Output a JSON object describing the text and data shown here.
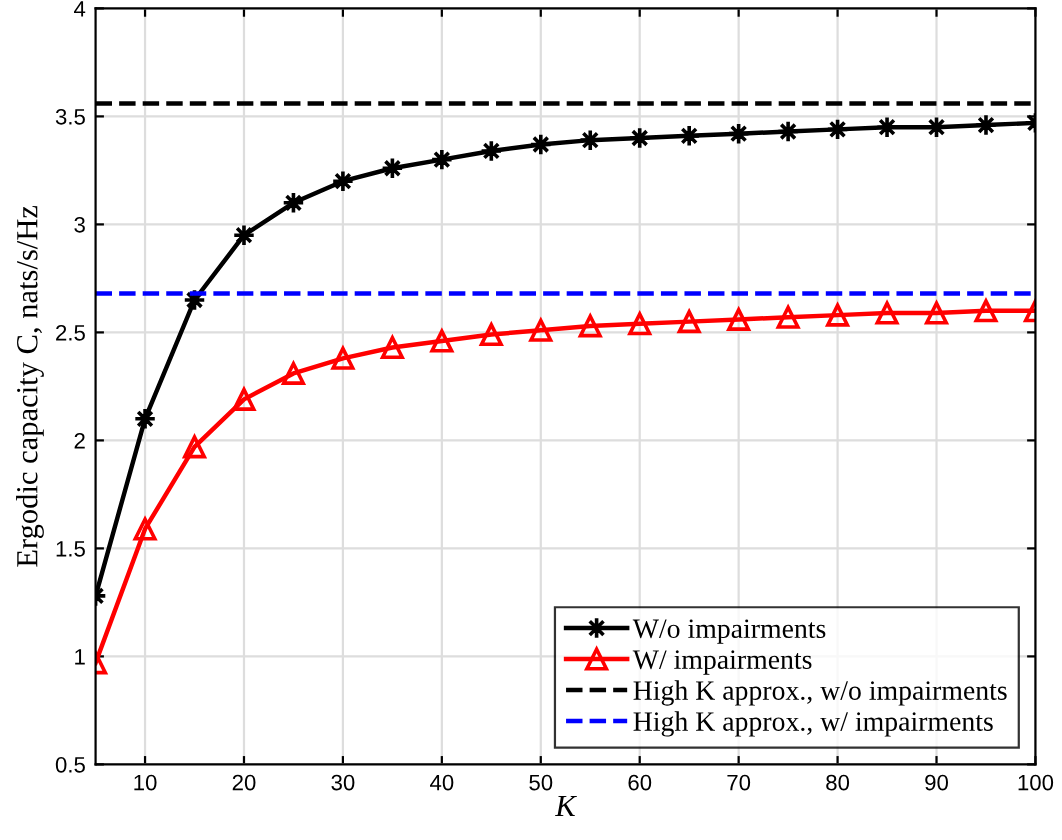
{
  "chart_data": {
    "type": "line",
    "xlabel": "K",
    "ylabel": "Ergodic capacity C, nats/s/Hz",
    "x": [
      5,
      10,
      15,
      20,
      25,
      30,
      35,
      40,
      45,
      50,
      55,
      60,
      65,
      70,
      75,
      80,
      85,
      90,
      95,
      100
    ],
    "series": [
      {
        "name": "W/o impairments",
        "color": "#000000",
        "marker": "star",
        "line_style": "solid",
        "values": [
          1.28,
          2.1,
          2.65,
          2.95,
          3.1,
          3.2,
          3.26,
          3.3,
          3.34,
          3.37,
          3.39,
          3.4,
          3.41,
          3.42,
          3.43,
          3.44,
          3.45,
          3.45,
          3.46,
          3.47
        ]
      },
      {
        "name": "W/ impairments",
        "color": "#ff0000",
        "marker": "triangle",
        "line_style": "solid",
        "values": [
          0.97,
          1.59,
          1.97,
          2.19,
          2.31,
          2.38,
          2.43,
          2.46,
          2.49,
          2.51,
          2.53,
          2.54,
          2.55,
          2.56,
          2.57,
          2.58,
          2.59,
          2.59,
          2.6,
          2.6
        ]
      }
    ],
    "ref_lines": [
      {
        "axis": "y",
        "value": 3.56,
        "label": "High K approx., w/o impairments",
        "color": "#000000",
        "line_style": "dashed"
      },
      {
        "axis": "y",
        "value": 2.68,
        "label": "High K approx., w/ impairments",
        "color": "#0000ff",
        "line_style": "dashed"
      }
    ],
    "xlim": [
      5,
      100
    ],
    "xticks": [
      10,
      20,
      30,
      40,
      50,
      60,
      70,
      80,
      90,
      100
    ],
    "ylim": [
      0.5,
      4
    ],
    "yticks": [
      0.5,
      1,
      1.5,
      2,
      2.5,
      3,
      3.5,
      4
    ],
    "grid": true,
    "legend": "bottom right"
  }
}
